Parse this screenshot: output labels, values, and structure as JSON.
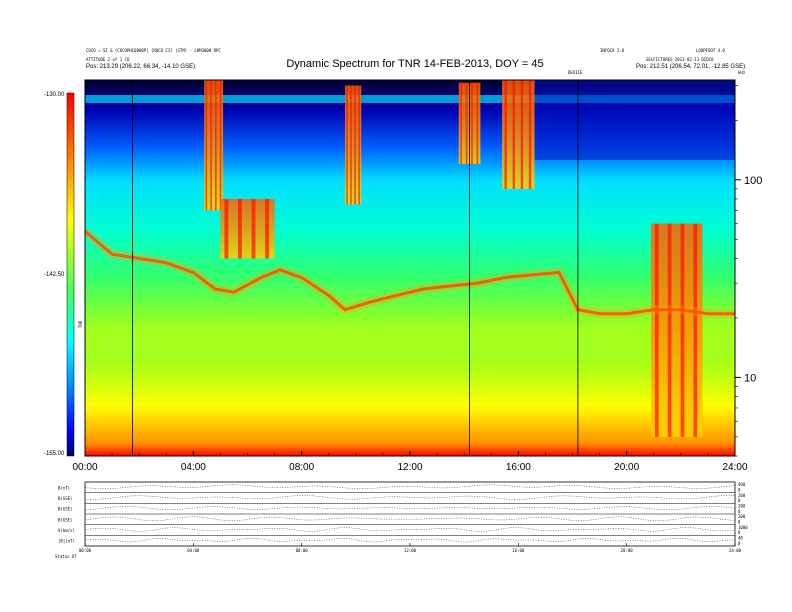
{
  "header": {
    "title": "Dynamic Spectrum for TNR 14-FEB-2013, DOY = 45",
    "left_line1": "COCO = SI & [COCOPHC0000P] [ROCO CI] (STM) - LHM3000 RPC",
    "left_line2": "ATTITUDE 2 of 1 CO",
    "left_line3": "Pos: 213.29 (206.22, 66.34, -14.10 GSE)",
    "right_line1": "INFOCO 2.0",
    "right_line1b": "LOOPFOOT 4.0",
    "right_line2": "SELFICTURES 2013-02-13 DIDCO",
    "right_line3": "Pos: 212.51 (206.54, 72.01, -12.85 GSE)",
    "marker_label": "DEVICE",
    "unit_label": "kHz"
  },
  "colorbar": {
    "max_label": "-130.00",
    "mid_label": "-142.50",
    "min_label": "-155.00",
    "axis_label": "TNR"
  },
  "bottom_panel": {
    "row_labels": [
      "B(nT)",
      "B(GSE)",
      "B(GSE)",
      "B(GSE)",
      "V(km/s)",
      "|B|(nT)"
    ],
    "footer_label": "Status  UT",
    "x_ticks": [
      "00:00",
      "04:00",
      "08:00",
      "12:00",
      "16:00",
      "20:00",
      "24:00"
    ],
    "right_ticks": [
      "400",
      "0",
      "200",
      "0",
      "200",
      "0",
      "200",
      "0",
      "1000",
      "0",
      "40",
      "0"
    ]
  },
  "chart_data": {
    "type": "heatmap",
    "title": "Dynamic Spectrum for TNR 14-FEB-2013, DOY = 45",
    "xlabel": "",
    "ylabel": "",
    "x_ticks": [
      "00:00",
      "04:00",
      "08:00",
      "12:00",
      "16:00",
      "20:00",
      "24:00"
    ],
    "xlim_hours": [
      0,
      24
    ],
    "y_scale": "log",
    "ylim_khz": [
      4,
      320
    ],
    "y_ticks": [
      10,
      100
    ],
    "y_tick_labels": [
      "10",
      "100"
    ],
    "color_scale": {
      "min": -155.0,
      "mid": -142.5,
      "max": -130.0,
      "colors": [
        "#000060",
        "#0000ff",
        "#00bfff",
        "#00ffff",
        "#40ff60",
        "#ffff00",
        "#ff8000",
        "#ff0000"
      ]
    },
    "vertical_markers_hours": [
      1.75,
      14.2,
      18.2
    ],
    "plasma_line_khz": [
      [
        0,
        55
      ],
      [
        0.5,
        48
      ],
      [
        1,
        42
      ],
      [
        2,
        40
      ],
      [
        3,
        38
      ],
      [
        4,
        34
      ],
      [
        4.8,
        28
      ],
      [
        5.5,
        27
      ],
      [
        6.5,
        32
      ],
      [
        7.2,
        35
      ],
      [
        8,
        32
      ],
      [
        9,
        26
      ],
      [
        9.6,
        22
      ],
      [
        10.5,
        24
      ],
      [
        11.5,
        26
      ],
      [
        12.5,
        28
      ],
      [
        13.5,
        29
      ],
      [
        14.5,
        30
      ],
      [
        15.5,
        32
      ],
      [
        16.5,
        33
      ],
      [
        17.5,
        34
      ],
      [
        18.2,
        22
      ],
      [
        19,
        21
      ],
      [
        20,
        21
      ],
      [
        21,
        22
      ],
      [
        22,
        22
      ],
      [
        23,
        21
      ],
      [
        24,
        21
      ]
    ],
    "emission_bursts": [
      {
        "start_h": 4.4,
        "end_h": 5.1,
        "top_khz": 320,
        "bottom_khz": 70
      },
      {
        "start_h": 5.0,
        "end_h": 7.0,
        "top_khz": 80,
        "bottom_khz": 40
      },
      {
        "start_h": 9.6,
        "end_h": 10.2,
        "top_khz": 300,
        "bottom_khz": 75
      },
      {
        "start_h": 13.8,
        "end_h": 14.6,
        "top_khz": 310,
        "bottom_khz": 120
      },
      {
        "start_h": 15.4,
        "end_h": 16.6,
        "top_khz": 320,
        "bottom_khz": 90
      },
      {
        "start_h": 20.9,
        "end_h": 22.8,
        "top_khz": 60,
        "bottom_khz": 5
      }
    ]
  }
}
